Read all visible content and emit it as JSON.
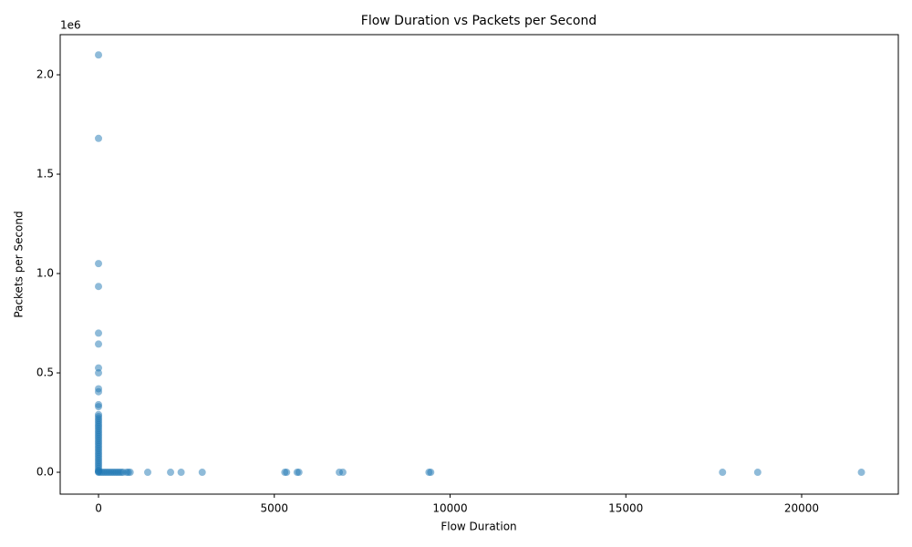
{
  "chart_data": {
    "type": "scatter",
    "title": "Flow Duration vs Packets per Second",
    "x_label": "Flow Duration",
    "y_label": "Packets per Second",
    "y_offset_label": "1e6",
    "color": "#1f77b4",
    "xlim": [
      -1090,
      22750
    ],
    "ylim": [
      -110000,
      2202000
    ],
    "xticks": [
      0,
      5000,
      10000,
      15000,
      20000
    ],
    "yticks": [
      {
        "value": 0,
        "label": "0.0"
      },
      {
        "value": 500000,
        "label": "0.5"
      },
      {
        "value": 1000000,
        "label": "1.0"
      },
      {
        "value": 1500000,
        "label": "1.5"
      },
      {
        "value": 2000000,
        "label": "2.0"
      }
    ],
    "grid": false,
    "x": [
      0,
      0,
      0,
      0,
      0,
      0,
      0,
      0,
      0,
      0,
      0,
      0,
      0,
      0,
      0,
      0,
      0,
      0,
      0,
      0,
      0,
      0,
      0,
      0,
      0,
      0,
      0,
      0,
      0,
      0,
      0,
      0,
      0,
      0,
      0,
      0,
      0,
      0,
      0,
      0,
      0,
      0,
      0,
      0,
      50,
      100,
      150,
      200,
      250,
      300,
      350,
      400,
      450,
      500,
      550,
      600,
      650,
      700,
      800,
      850,
      900,
      1400,
      2050,
      2350,
      2950,
      5300,
      5350,
      5650,
      5700,
      6850,
      6950,
      9400,
      9450,
      17750,
      18750,
      21700
    ],
    "values": [
      2100000,
      1680000,
      1050000,
      935000,
      700000,
      645000,
      525000,
      500000,
      420000,
      405000,
      340000,
      330000,
      290000,
      280000,
      270000,
      260000,
      250000,
      240000,
      230000,
      220000,
      210000,
      200000,
      190000,
      180000,
      170000,
      160000,
      150000,
      140000,
      130000,
      120000,
      110000,
      100000,
      90000,
      80000,
      70000,
      60000,
      50000,
      40000,
      30000,
      20000,
      10000,
      5000,
      2000,
      0,
      0,
      0,
      0,
      0,
      0,
      0,
      0,
      0,
      0,
      0,
      0,
      0,
      0,
      0,
      0,
      0,
      0,
      0,
      0,
      0,
      0,
      0,
      0,
      0,
      0,
      0,
      0,
      0,
      0,
      0,
      0,
      0
    ]
  }
}
